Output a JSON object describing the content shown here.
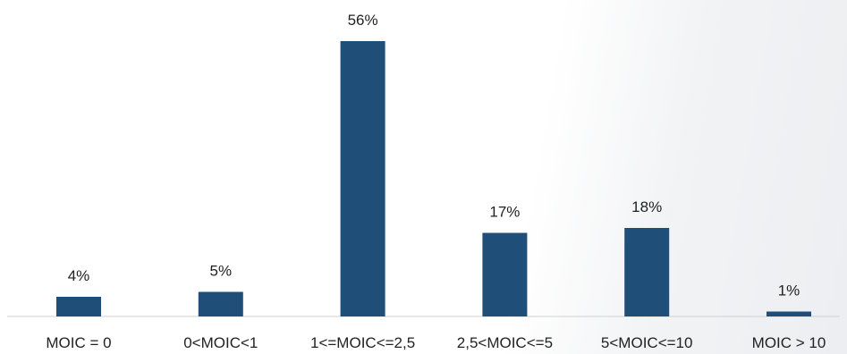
{
  "chart_data": {
    "type": "bar",
    "categories": [
      "MOIC = 0",
      "0<MOIC<1",
      "1<=MOIC<=2,5",
      "2,5<MOIC<=5",
      "5<MOIC<=10",
      "MOIC > 10"
    ],
    "values": [
      4,
      5,
      56,
      17,
      18,
      1
    ],
    "value_labels": [
      "4%",
      "5%",
      "56%",
      "17%",
      "18%",
      "1%"
    ],
    "title": "",
    "xlabel": "",
    "ylabel": "",
    "ylim": [
      0,
      56
    ],
    "grid": false,
    "legend": "none",
    "colors": {
      "bar": "#1f4e79",
      "axis": "#d0d0d0",
      "text": "#222222"
    }
  }
}
